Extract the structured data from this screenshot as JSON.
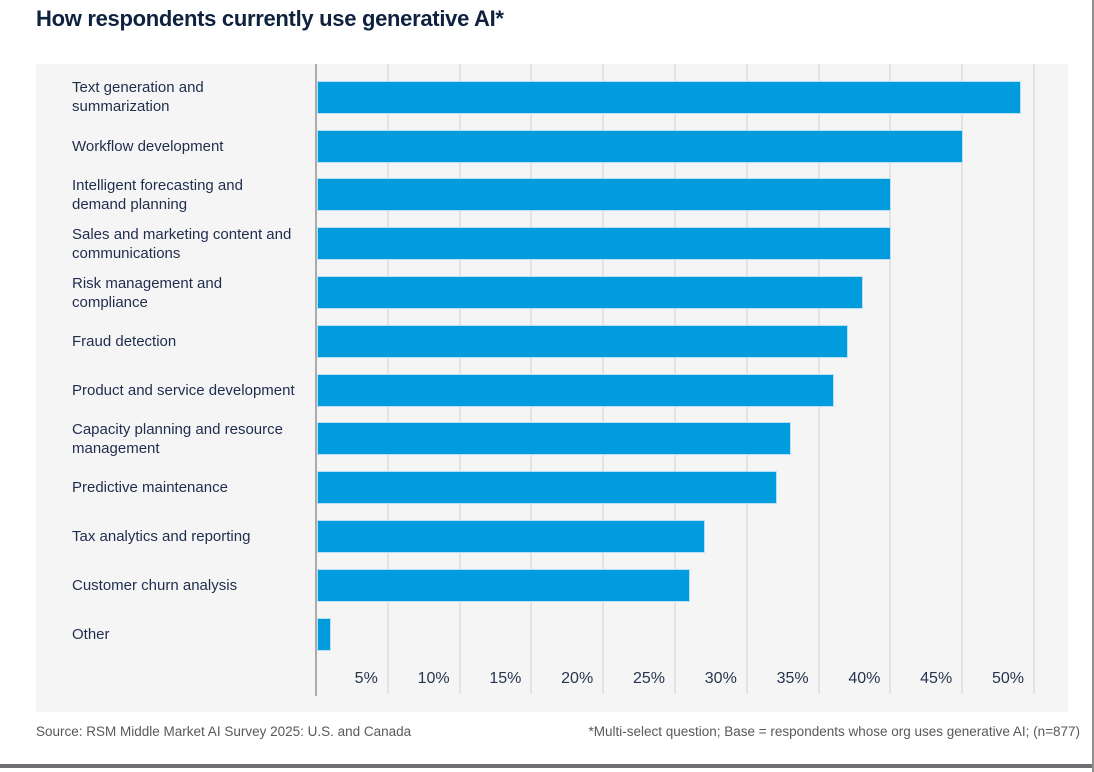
{
  "title": "How respondents currently use generative AI*",
  "chart_data": {
    "type": "bar",
    "orientation": "horizontal",
    "title": "How respondents currently use generative AI*",
    "categories": [
      "Text generation and summarization",
      "Workflow development",
      "Intelligent forecasting and demand planning",
      "Sales and marketing content and communications",
      "Risk management and compliance",
      "Fraud detection",
      "Product and service development",
      "Capacity planning and resource management",
      "Predictive maintenance",
      "Tax analytics and reporting",
      "Customer churn analysis",
      "Other"
    ],
    "values": [
      49,
      45,
      40,
      40,
      38,
      37,
      36,
      33,
      32,
      27,
      26,
      1
    ],
    "unit": "%",
    "xlim": [
      0,
      52.4
    ],
    "x_ticks": [
      {
        "label": "5%",
        "value": 5
      },
      {
        "label": "10%",
        "value": 10
      },
      {
        "label": "15%",
        "value": 15
      },
      {
        "label": "20%",
        "value": 20
      },
      {
        "label": "25%",
        "value": 25
      },
      {
        "label": "30%",
        "value": 30
      },
      {
        "label": "35%",
        "value": 35
      },
      {
        "label": "40%",
        "value": 40
      },
      {
        "label": "45%",
        "value": 45
      },
      {
        "label": "50%",
        "value": 50
      }
    ],
    "grid": true,
    "legend": "none",
    "colors": {
      "bar": "#009CDE",
      "panel_background": "#f5f5f5",
      "gridline": "#e3e3e3",
      "axis_line": "#ababab",
      "title_text": "#0e2240",
      "label_text": "#1f2d4d",
      "footer_text": "#58595b"
    }
  },
  "footer": {
    "source": "Source: RSM Middle Market AI Survey 2025: U.S. and Canada",
    "note": "*Multi-select question; Base = respondents whose org uses generative AI; (n=877)"
  }
}
